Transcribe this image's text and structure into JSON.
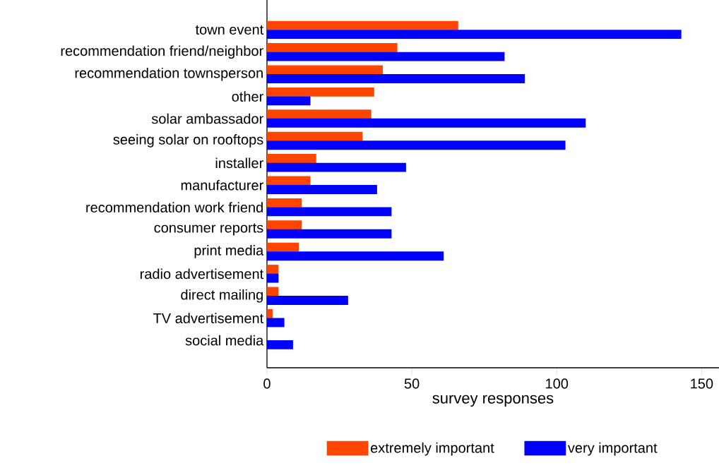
{
  "chart_data": {
    "type": "bar",
    "orientation": "horizontal",
    "xlabel": "survey responses",
    "categories": [
      "town event",
      "recommendation friend/neighbor",
      "recommendation townsperson",
      "other",
      "solar ambassador",
      "seeing solar on rooftops",
      "installer",
      "manufacturer",
      "recommendation work friend",
      "consumer reports",
      "print media",
      "radio advertisement",
      "direct mailing",
      "TV advertisement",
      "social media"
    ],
    "series": [
      {
        "name": "extremely important",
        "color": "#ff4500",
        "values": [
          66,
          45,
          40,
          37,
          36,
          33,
          17,
          15,
          12,
          12,
          11,
          4,
          4,
          2,
          0
        ]
      },
      {
        "name": "very important",
        "color": "#0000ff",
        "values": [
          143,
          82,
          89,
          15,
          110,
          103,
          48,
          38,
          43,
          43,
          61,
          4,
          28,
          6,
          9
        ]
      }
    ],
    "xlim": [
      0,
      156
    ],
    "xticks": [
      0,
      50,
      100,
      150
    ],
    "legend": "bottom"
  }
}
